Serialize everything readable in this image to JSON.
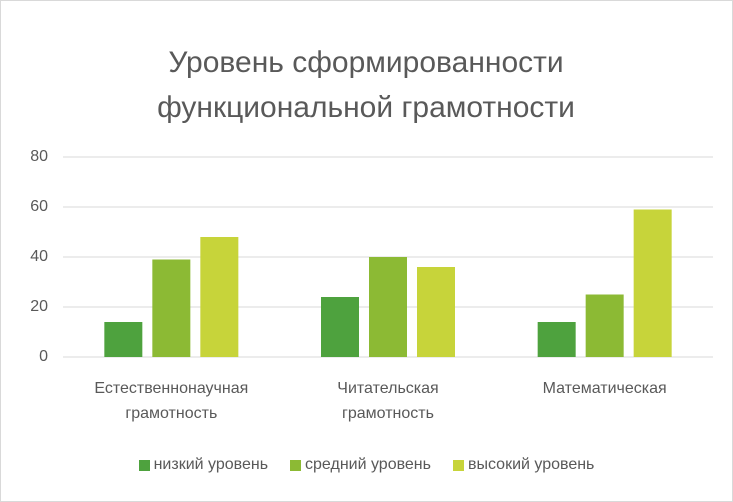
{
  "chart_data": {
    "type": "bar",
    "title": "Уровень сформированности функциональной грамотности",
    "categories": [
      "Естественнонаучная грамотность",
      "Читательская грамотность",
      "Математическая"
    ],
    "series": [
      {
        "name": "низкий уровень",
        "color": "#4ea23e",
        "values": [
          14,
          24,
          14
        ]
      },
      {
        "name": "средний уровень",
        "color": "#8cba34",
        "values": [
          39,
          40,
          25
        ]
      },
      {
        "name": "высокий уровень",
        "color": "#c7d43a",
        "values": [
          48,
          36,
          59
        ]
      }
    ],
    "ylim": [
      0,
      80
    ],
    "yticks": [
      0,
      20,
      40,
      60,
      80
    ],
    "grid": true,
    "legend": "bottom"
  }
}
